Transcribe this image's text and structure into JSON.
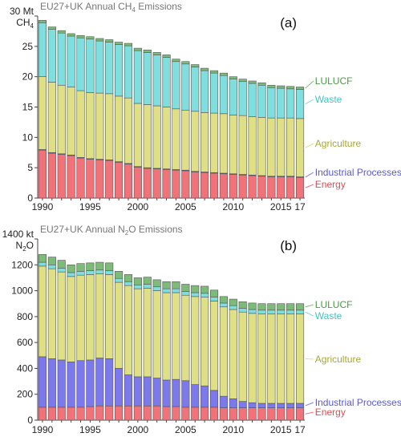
{
  "categories_note": "",
  "colors": {
    "energy": "#f2727a",
    "industrial": "#7b79ec",
    "agriculture": "#dfe086",
    "waste": "#7fdede",
    "lulucf": "#7dbb78",
    "axis": "#444444",
    "title_text": "#777777",
    "tick_text": "#222222"
  },
  "chart_data": [
    {
      "panel_label": "(a)",
      "type": "bar",
      "stacked": true,
      "title": "EU27+UK Annual CH",
      "title_sub": "4",
      "title_rest": " Emissions",
      "ylabel_top": "30 Mt",
      "ylabel_bottom": "CH",
      "ylabel_sub": "4",
      "ylim": [
        0,
        30
      ],
      "yticks": [
        "0",
        "5",
        "10",
        "15",
        "20",
        "25"
      ],
      "ytick_values": [
        0,
        5,
        10,
        15,
        20,
        25
      ],
      "xtick_labels": [
        "1990",
        "1995",
        "2000",
        "2005",
        "2010",
        "2015",
        "17"
      ],
      "xtick_years": [
        1990,
        1995,
        2000,
        2005,
        2010,
        2015,
        2017
      ],
      "x": [
        1990,
        1991,
        1992,
        1993,
        1994,
        1995,
        1996,
        1997,
        1998,
        1999,
        2000,
        2001,
        2002,
        2003,
        2004,
        2005,
        2006,
        2007,
        2008,
        2009,
        2010,
        2011,
        2012,
        2013,
        2014,
        2015,
        2016,
        2017
      ],
      "series": [
        {
          "name": "Energy",
          "key": "energy",
          "values": [
            7.9,
            7.4,
            7.2,
            7.0,
            6.6,
            6.4,
            6.3,
            6.2,
            5.9,
            5.6,
            5.1,
            4.9,
            4.8,
            4.7,
            4.6,
            4.5,
            4.3,
            4.2,
            4.1,
            4.0,
            3.9,
            3.8,
            3.7,
            3.6,
            3.5,
            3.5,
            3.5,
            3.4
          ]
        },
        {
          "name": "Industrial Processes",
          "key": "industrial",
          "values": [
            0.1,
            0.1,
            0.1,
            0.1,
            0.1,
            0.1,
            0.1,
            0.1,
            0.1,
            0.1,
            0.1,
            0.1,
            0.1,
            0.1,
            0.1,
            0.1,
            0.1,
            0.1,
            0.1,
            0.1,
            0.1,
            0.1,
            0.1,
            0.1,
            0.1,
            0.1,
            0.1,
            0.1
          ]
        },
        {
          "name": "Agriculture",
          "key": "agriculture",
          "values": [
            12.0,
            11.6,
            11.3,
            11.2,
            11.0,
            10.9,
            10.9,
            10.9,
            10.8,
            10.8,
            10.4,
            10.4,
            10.3,
            10.2,
            10.0,
            9.9,
            9.9,
            9.8,
            9.8,
            9.8,
            9.7,
            9.7,
            9.6,
            9.6,
            9.6,
            9.6,
            9.6,
            9.6
          ]
        },
        {
          "name": "Waste",
          "key": "waste",
          "values": [
            8.9,
            8.7,
            8.6,
            8.4,
            8.7,
            8.8,
            8.6,
            8.5,
            8.5,
            8.6,
            8.7,
            8.6,
            8.4,
            8.2,
            7.8,
            7.6,
            7.3,
            6.9,
            6.6,
            6.3,
            5.9,
            5.6,
            5.5,
            5.3,
            5.0,
            4.9,
            4.8,
            4.8
          ]
        },
        {
          "name": "LULUCF",
          "key": "lulucf",
          "values": [
            0.4,
            0.4,
            0.4,
            0.4,
            0.4,
            0.4,
            0.4,
            0.4,
            0.4,
            0.4,
            0.4,
            0.4,
            0.4,
            0.4,
            0.4,
            0.4,
            0.4,
            0.4,
            0.4,
            0.4,
            0.4,
            0.4,
            0.4,
            0.4,
            0.4,
            0.4,
            0.4,
            0.4
          ]
        }
      ],
      "legend_labels": [
        {
          "key": "lulucf",
          "text": "LULUCF"
        },
        {
          "key": "waste",
          "text": "Waste"
        },
        {
          "key": "agriculture",
          "text": "Agriculture"
        },
        {
          "key": "industrial",
          "text": "Industrial Processes"
        },
        {
          "key": "energy",
          "text": "Energy"
        }
      ]
    },
    {
      "panel_label": "(b)",
      "type": "bar",
      "stacked": true,
      "title": "EU27+UK Annual N",
      "title_sub": "2",
      "title_rest": "O Emissions",
      "ylabel_top": "1400 kt",
      "ylabel_bottom": "N",
      "ylabel_sub": "2",
      "ylabel_bottom_rest": "O",
      "ylim": [
        0,
        1400
      ],
      "yticks": [
        "0",
        "200",
        "400",
        "600",
        "800",
        "1000",
        "1200"
      ],
      "ytick_values": [
        0,
        200,
        400,
        600,
        800,
        1000,
        1200
      ],
      "xtick_labels": [
        "1990",
        "1995",
        "2000",
        "2005",
        "2010",
        "2015",
        "17"
      ],
      "xtick_years": [
        1990,
        1995,
        2000,
        2005,
        2010,
        2015,
        2017
      ],
      "x": [
        1990,
        1991,
        1992,
        1993,
        1994,
        1995,
        1996,
        1997,
        1998,
        1999,
        2000,
        2001,
        2002,
        2003,
        2004,
        2005,
        2006,
        2007,
        2008,
        2009,
        2010,
        2011,
        2012,
        2013,
        2014,
        2015,
        2016,
        2017
      ],
      "series": [
        {
          "name": "Energy",
          "key": "energy",
          "values": [
            100,
            100,
            100,
            100,
            100,
            105,
            110,
            110,
            110,
            110,
            110,
            110,
            110,
            105,
            105,
            100,
            100,
            100,
            100,
            95,
            95,
            95,
            95,
            95,
            95,
            95,
            95,
            95
          ]
        },
        {
          "name": "Industrial Processes",
          "key": "industrial",
          "values": [
            390,
            375,
            365,
            350,
            360,
            360,
            370,
            365,
            290,
            240,
            225,
            225,
            215,
            205,
            210,
            205,
            175,
            165,
            130,
            90,
            70,
            50,
            40,
            35,
            35,
            35,
            35,
            35
          ]
        },
        {
          "name": "Agriculture",
          "key": "agriculture",
          "values": [
            700,
            695,
            680,
            660,
            660,
            660,
            650,
            650,
            665,
            690,
            680,
            685,
            675,
            675,
            670,
            660,
            680,
            685,
            690,
            690,
            690,
            690,
            690,
            690,
            690,
            690,
            690,
            690
          ]
        },
        {
          "name": "Waste",
          "key": "waste",
          "values": [
            30,
            30,
            30,
            30,
            30,
            30,
            30,
            30,
            30,
            30,
            30,
            30,
            30,
            30,
            30,
            30,
            30,
            30,
            30,
            30,
            30,
            30,
            30,
            30,
            30,
            30,
            30,
            30
          ]
        },
        {
          "name": "LULUCF",
          "key": "lulucf",
          "values": [
            60,
            60,
            60,
            60,
            60,
            60,
            60,
            60,
            55,
            55,
            55,
            55,
            55,
            55,
            55,
            55,
            55,
            55,
            55,
            50,
            50,
            50,
            50,
            50,
            50,
            50,
            50,
            50
          ]
        }
      ],
      "legend_labels": [
        {
          "key": "lulucf",
          "text": "LULUCF"
        },
        {
          "key": "waste",
          "text": "Waste"
        },
        {
          "key": "agriculture",
          "text": "Agriculture"
        },
        {
          "key": "industrial",
          "text": "Industrial Processes"
        },
        {
          "key": "energy",
          "text": "Energy"
        }
      ]
    }
  ]
}
